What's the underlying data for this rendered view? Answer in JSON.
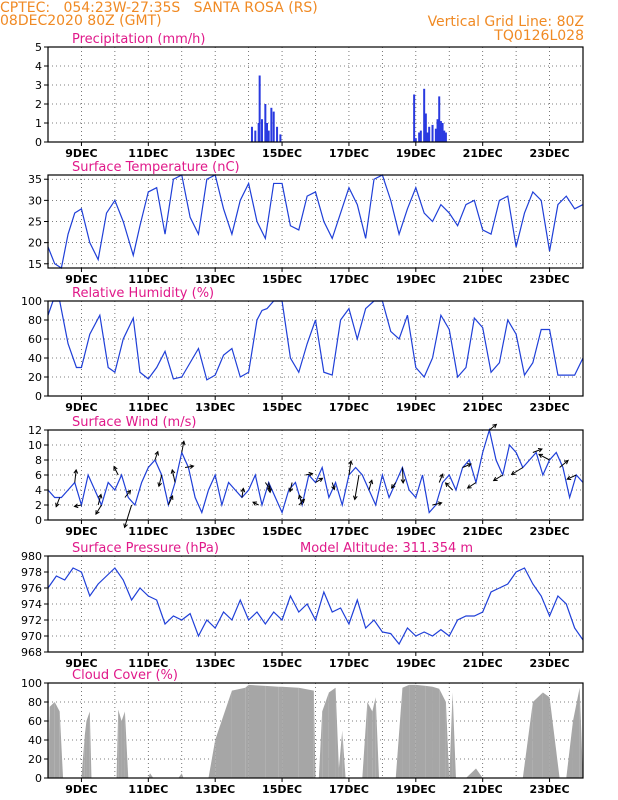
{
  "header": {
    "line1_left": "CPTEC:   054:23W-27:35S   SANTA ROSA (RS)",
    "line2_left": "08DEC2020 80Z (GMT)",
    "line1_right": "Vertical Grid Line: 80Z",
    "line2_right": "TQ0126L028"
  },
  "colors": {
    "header": "#f08a24",
    "title": "#e0198a",
    "line": "#1f3fd8",
    "bars": "#2a3ae0",
    "cloud": "#a6a6a6",
    "grid": "#555555"
  },
  "chart_data": [
    {
      "type": "bar",
      "title": "Precipitation (mm/h)",
      "ylim": [
        0,
        5
      ],
      "yticks": [
        0,
        1,
        2,
        3,
        4,
        5
      ],
      "x_ticks": [
        "9DEC",
        "11DEC",
        "13DEC",
        "15DEC",
        "17DEC",
        "19DEC",
        "21DEC",
        "23DEC"
      ],
      "x_unit": "days since 08DEC2020",
      "x": [
        6.1,
        6.2,
        6.3,
        6.33,
        6.4,
        6.5,
        6.55,
        6.6,
        6.68,
        6.75,
        6.85,
        6.95,
        10.95,
        11.0,
        11.1,
        11.15,
        11.25,
        11.3,
        11.35,
        11.4,
        11.5,
        11.6,
        11.65,
        11.7,
        11.75,
        11.8,
        11.85,
        11.9
      ],
      "values": [
        0.8,
        0.6,
        1.0,
        3.5,
        1.2,
        2.0,
        1.0,
        0.6,
        1.8,
        1.6,
        0.8,
        0.4,
        2.5,
        0.2,
        0.5,
        0.6,
        2.8,
        1.5,
        0.5,
        0.8,
        0.9,
        0.7,
        1.2,
        2.4,
        1.1,
        1.0,
        0.6,
        0.5
      ]
    },
    {
      "type": "line",
      "title": "Surface Temperature (nC)",
      "ylim": [
        14,
        36
      ],
      "yticks": [
        15,
        20,
        25,
        30,
        35
      ],
      "x_ticks": [
        "9DEC",
        "11DEC",
        "13DEC",
        "15DEC",
        "17DEC",
        "19DEC",
        "21DEC",
        "23DEC"
      ],
      "x_unit": "days since 08DEC2020",
      "x": [
        0.0,
        0.2,
        0.4,
        0.6,
        0.8,
        1.0,
        1.25,
        1.5,
        1.75,
        2.0,
        2.25,
        2.55,
        2.75,
        3.0,
        3.25,
        3.5,
        3.75,
        4.0,
        4.25,
        4.5,
        4.75,
        5.0,
        5.25,
        5.5,
        5.75,
        6.0,
        6.25,
        6.5,
        6.75,
        7.0,
        7.25,
        7.5,
        7.75,
        8.0,
        8.25,
        8.5,
        8.75,
        9.0,
        9.25,
        9.5,
        9.75,
        10.0,
        10.25,
        10.5,
        10.75,
        11.0,
        11.25,
        11.5,
        11.75,
        12.0,
        12.25,
        12.5,
        12.75,
        13.0,
        13.25,
        13.5,
        13.75,
        14.0,
        14.25,
        14.5,
        14.75,
        15.0,
        15.25,
        15.5,
        15.75,
        16.0
      ],
      "values": [
        19,
        15,
        14,
        22,
        27,
        28,
        20,
        16,
        27,
        30,
        25,
        17,
        24,
        32,
        33,
        22,
        35,
        36,
        26,
        22,
        35,
        36,
        28,
        22,
        30,
        34,
        25,
        21,
        34,
        34,
        24,
        23,
        31,
        32,
        25,
        21,
        27,
        33,
        29,
        21,
        35,
        36,
        30,
        22,
        28,
        33,
        27,
        25,
        29,
        27,
        24,
        29,
        30,
        23,
        22,
        30,
        31,
        19,
        27,
        32,
        30,
        18,
        29,
        31,
        28,
        29
      ]
    },
    {
      "type": "line",
      "title": "Relative Humidity (%)",
      "ylim": [
        0,
        100
      ],
      "yticks": [
        0,
        20,
        40,
        60,
        80,
        100
      ],
      "x_ticks": [
        "9DEC",
        "11DEC",
        "13DEC",
        "15DEC",
        "17DEC",
        "19DEC",
        "21DEC",
        "23DEC"
      ],
      "x_unit": "days since 08DEC2020",
      "x": [
        0.0,
        0.15,
        0.35,
        0.6,
        0.85,
        1.0,
        1.25,
        1.55,
        1.8,
        2.0,
        2.25,
        2.55,
        2.75,
        3.0,
        3.25,
        3.5,
        3.75,
        4.0,
        4.25,
        4.5,
        4.75,
        5.0,
        5.25,
        5.5,
        5.75,
        6.0,
        6.25,
        6.4,
        6.55,
        6.75,
        7.0,
        7.25,
        7.5,
        7.75,
        8.0,
        8.25,
        8.5,
        8.75,
        9.0,
        9.25,
        9.5,
        9.75,
        10.0,
        10.25,
        10.5,
        10.75,
        11.0,
        11.25,
        11.5,
        11.75,
        12.0,
        12.25,
        12.5,
        12.75,
        13.0,
        13.25,
        13.5,
        13.75,
        14.0,
        14.25,
        14.5,
        14.75,
        15.0,
        15.25,
        15.5,
        15.75,
        16.0
      ],
      "values": [
        85,
        100,
        100,
        55,
        30,
        30,
        65,
        85,
        30,
        25,
        60,
        82,
        25,
        18,
        30,
        47,
        18,
        20,
        35,
        50,
        17,
        22,
        43,
        50,
        20,
        25,
        80,
        90,
        92,
        100,
        100,
        40,
        25,
        55,
        80,
        25,
        22,
        80,
        92,
        60,
        92,
        100,
        100,
        68,
        60,
        85,
        30,
        20,
        40,
        85,
        70,
        20,
        30,
        82,
        72,
        25,
        35,
        80,
        65,
        22,
        35,
        70,
        70,
        22,
        22,
        22,
        40
      ]
    },
    {
      "type": "line",
      "title": "Surface Wind (m/s)",
      "ylim": [
        0,
        12
      ],
      "yticks": [
        0,
        2,
        4,
        6,
        8,
        10,
        12
      ],
      "x_ticks": [
        "9DEC",
        "11DEC",
        "13DEC",
        "15DEC",
        "17DEC",
        "19DEC",
        "21DEC",
        "23DEC"
      ],
      "x_unit": "days since 08DEC2020",
      "x": [
        0.0,
        0.2,
        0.4,
        0.6,
        0.8,
        1.0,
        1.2,
        1.4,
        1.6,
        1.8,
        2.0,
        2.2,
        2.4,
        2.6,
        2.8,
        3.0,
        3.2,
        3.4,
        3.6,
        3.8,
        4.0,
        4.2,
        4.4,
        4.6,
        4.8,
        5.0,
        5.2,
        5.4,
        5.6,
        5.8,
        6.0,
        6.2,
        6.4,
        6.6,
        6.8,
        7.0,
        7.2,
        7.4,
        7.6,
        7.8,
        8.0,
        8.2,
        8.4,
        8.6,
        8.8,
        9.0,
        9.2,
        9.4,
        9.6,
        9.8,
        10.0,
        10.2,
        10.4,
        10.6,
        10.8,
        11.0,
        11.2,
        11.4,
        11.6,
        11.8,
        12.0,
        12.2,
        12.4,
        12.6,
        12.8,
        13.0,
        13.2,
        13.4,
        13.6,
        13.8,
        14.0,
        14.2,
        14.4,
        14.6,
        14.8,
        15.0,
        15.2,
        15.4,
        15.6,
        15.8,
        16.0
      ],
      "values": [
        4,
        3,
        3,
        4,
        5,
        2,
        6,
        4,
        2,
        5,
        4,
        6,
        3,
        2,
        5,
        7,
        8,
        6,
        2,
        5,
        9,
        7,
        3,
        1,
        4,
        6,
        2,
        5,
        4,
        3,
        4,
        6,
        2,
        5,
        3,
        1,
        4,
        5,
        2,
        6,
        5,
        7,
        3,
        5,
        2,
        6,
        7,
        6,
        4,
        2,
        6,
        3,
        5,
        7,
        4,
        3,
        6,
        1,
        2,
        5,
        6,
        4,
        7,
        8,
        5,
        9,
        12,
        8,
        6,
        10,
        9,
        7,
        8,
        9,
        6,
        8,
        9,
        7,
        3,
        6,
        5
      ],
      "vectors": [
        {
          "x": 0.35,
          "u": -0.5,
          "v": -1.3
        },
        {
          "x": 0.8,
          "u": 0.2,
          "v": 1.8
        },
        {
          "x": 1.0,
          "u": -1.0,
          "v": -0.2
        },
        {
          "x": 1.5,
          "u": 0.4,
          "v": 1.5
        },
        {
          "x": 1.6,
          "u": -0.8,
          "v": -1.3
        },
        {
          "x": 2.1,
          "u": -0.6,
          "v": 1.2
        },
        {
          "x": 2.3,
          "u": 0.8,
          "v": 1.0
        },
        {
          "x": 2.5,
          "u": -1.0,
          "v": -3.2
        },
        {
          "x": 3.2,
          "u": 0.4,
          "v": 1.2
        },
        {
          "x": 3.4,
          "u": -0.4,
          "v": -1.6
        },
        {
          "x": 3.6,
          "u": 0.6,
          "v": 1.3
        },
        {
          "x": 3.8,
          "u": -0.4,
          "v": 1.8
        },
        {
          "x": 4.0,
          "u": 0.3,
          "v": 1.6
        },
        {
          "x": 4.1,
          "u": 1.2,
          "v": 0.2
        },
        {
          "x": 5.8,
          "u": 0.2,
          "v": 1.3
        },
        {
          "x": 6.3,
          "u": -0.8,
          "v": 0.4
        },
        {
          "x": 6.5,
          "u": 0.7,
          "v": -1.0
        },
        {
          "x": 6.6,
          "u": 0.2,
          "v": -1.4
        },
        {
          "x": 7.3,
          "u": -0.3,
          "v": -1.3
        },
        {
          "x": 7.5,
          "u": 0.8,
          "v": 0.8
        },
        {
          "x": 7.6,
          "u": -0.4,
          "v": 1.4
        },
        {
          "x": 7.7,
          "u": 1.0,
          "v": 0.2
        },
        {
          "x": 8.0,
          "u": 1.0,
          "v": 0.6
        },
        {
          "x": 8.5,
          "u": 0.3,
          "v": -1.0
        },
        {
          "x": 9.0,
          "u": 0.3,
          "v": 2.0
        },
        {
          "x": 9.3,
          "u": -0.6,
          "v": -3.5
        },
        {
          "x": 9.6,
          "u": 0.4,
          "v": 1.4
        },
        {
          "x": 10.4,
          "u": -0.6,
          "v": -0.8
        },
        {
          "x": 10.6,
          "u": 0.1,
          "v": -2.2
        },
        {
          "x": 11.5,
          "u": 1.3,
          "v": 0.3
        },
        {
          "x": 11.7,
          "u": 0.5,
          "v": 1.2
        },
        {
          "x": 12.1,
          "u": -1.0,
          "v": 1.0
        },
        {
          "x": 12.4,
          "u": 1.2,
          "v": 0.5
        },
        {
          "x": 12.8,
          "u": -1.2,
          "v": -0.8
        },
        {
          "x": 13.2,
          "u": 1.0,
          "v": 0.8
        },
        {
          "x": 13.6,
          "u": -1.3,
          "v": -0.8
        },
        {
          "x": 14.2,
          "u": -1.6,
          "v": -1.0
        },
        {
          "x": 14.5,
          "u": 1.3,
          "v": 0.5
        },
        {
          "x": 15.0,
          "u": -1.5,
          "v": 0.8
        },
        {
          "x": 15.3,
          "u": 1.2,
          "v": 1.0
        },
        {
          "x": 15.8,
          "u": -1.3,
          "v": -0.6
        }
      ]
    },
    {
      "type": "line",
      "title": "Surface Pressure (hPa)",
      "annotation": "Model Altitude: 311.354  m",
      "ylim": [
        968,
        980
      ],
      "yticks": [
        968,
        970,
        972,
        974,
        976,
        978,
        980
      ],
      "x_ticks": [
        "9DEC",
        "11DEC",
        "13DEC",
        "15DEC",
        "17DEC",
        "19DEC",
        "21DEC",
        "23DEC"
      ],
      "x_unit": "days since 08DEC2020",
      "x": [
        0.0,
        0.25,
        0.5,
        0.75,
        1.0,
        1.25,
        1.5,
        1.75,
        2.0,
        2.25,
        2.5,
        2.75,
        3.0,
        3.25,
        3.5,
        3.75,
        4.0,
        4.25,
        4.5,
        4.75,
        5.0,
        5.25,
        5.5,
        5.75,
        6.0,
        6.25,
        6.5,
        6.75,
        7.0,
        7.25,
        7.5,
        7.75,
        8.0,
        8.25,
        8.5,
        8.75,
        9.0,
        9.25,
        9.5,
        9.75,
        10.0,
        10.25,
        10.5,
        10.75,
        11.0,
        11.25,
        11.5,
        11.75,
        12.0,
        12.25,
        12.5,
        12.75,
        13.0,
        13.25,
        13.5,
        13.75,
        14.0,
        14.25,
        14.5,
        14.75,
        15.0,
        15.25,
        15.5,
        15.75,
        16.0
      ],
      "values": [
        976,
        977.5,
        977,
        978.5,
        978,
        975,
        976.5,
        977.5,
        978.5,
        977,
        974.5,
        976,
        975,
        974.5,
        971.5,
        972.5,
        972,
        972.8,
        970,
        972,
        971,
        973,
        972,
        974.5,
        972,
        973,
        971.5,
        973,
        972,
        975,
        973,
        974,
        972,
        975.5,
        973,
        973.5,
        971.5,
        974.5,
        971,
        972,
        970.5,
        970.3,
        969,
        971,
        970,
        970.5,
        970,
        970.8,
        970,
        972,
        972.5,
        972.5,
        973,
        975.5,
        976,
        976.5,
        978,
        978.5,
        976.5,
        975,
        972.5,
        975,
        974,
        971,
        969.5
      ]
    },
    {
      "type": "area",
      "title": "Cloud Cover (%)",
      "ylim": [
        0,
        100
      ],
      "yticks": [
        0,
        20,
        40,
        60,
        80,
        100
      ],
      "x_ticks": [
        "9DEC",
        "11DEC",
        "13DEC",
        "15DEC",
        "17DEC",
        "19DEC",
        "21DEC",
        "23DEC"
      ],
      "x_unit": "days since 08DEC2020",
      "x": [
        0.0,
        0.05,
        0.2,
        0.35,
        0.45,
        0.6,
        0.85,
        1.0,
        1.1,
        1.15,
        1.25,
        1.3,
        1.4,
        1.6,
        2.05,
        2.1,
        2.2,
        2.3,
        2.4,
        2.6,
        3.0,
        3.05,
        3.15,
        3.3,
        3.5,
        3.9,
        4.0,
        4.05,
        4.2,
        4.4,
        4.8,
        5.0,
        5.5,
        5.9,
        6.0,
        6.5,
        6.9,
        7.0,
        7.5,
        7.95,
        8.0,
        8.1,
        8.2,
        8.4,
        8.6,
        8.7,
        8.8,
        8.9,
        9.0,
        9.2,
        9.4,
        9.55,
        9.7,
        9.8,
        9.9,
        10.1,
        10.4,
        10.6,
        10.8,
        11.0,
        11.3,
        11.5,
        11.7,
        11.9,
        12.0,
        12.1,
        12.2,
        12.5,
        12.8,
        13.0,
        13.1,
        13.3,
        13.6,
        13.8,
        14.0,
        14.2,
        14.5,
        14.8,
        15.0,
        15.3,
        15.5,
        15.7,
        15.9,
        16.0
      ],
      "values": [
        0,
        75,
        80,
        70,
        0,
        0,
        0,
        0,
        45,
        60,
        70,
        0,
        0,
        0,
        0,
        72,
        60,
        70,
        0,
        0,
        0,
        5,
        0,
        0,
        0,
        0,
        5,
        0,
        0,
        0,
        0,
        40,
        92,
        95,
        98,
        97,
        96,
        96,
        95,
        92,
        0,
        0,
        70,
        90,
        95,
        10,
        50,
        0,
        0,
        0,
        0,
        80,
        70,
        85,
        0,
        0,
        0,
        95,
        98,
        98,
        97,
        96,
        94,
        80,
        0,
        90,
        0,
        0,
        10,
        0,
        0,
        0,
        0,
        0,
        0,
        0,
        80,
        90,
        85,
        0,
        0,
        60,
        95,
        0
      ]
    }
  ]
}
